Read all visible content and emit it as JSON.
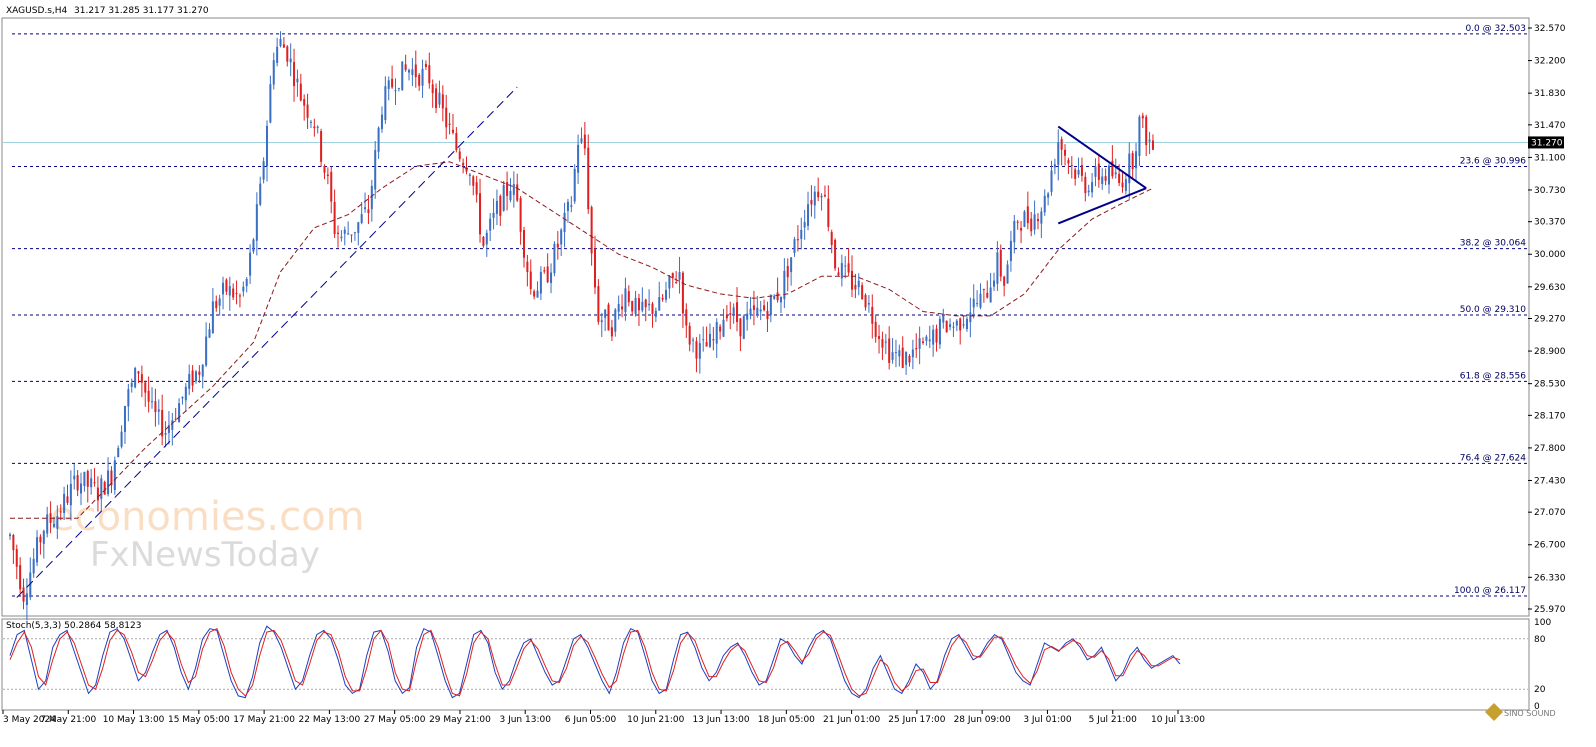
{
  "header": {
    "symbol": "XAGUSD.s,H4",
    "ohlc": "31.217 31.285 31.177 31.270"
  },
  "watermark": {
    "line1": "economies.com",
    "line2": "FxNewsToday"
  },
  "corner_logo": "SINO SOUND",
  "colors": {
    "bull": "#3a6fc4",
    "bear": "#e02020",
    "fib_line": "#000080",
    "ma": "#8b1a1a",
    "trendline": "#00008b",
    "current_price_line": "#9fd3df",
    "stoch_main": "#1f3fbf",
    "stoch_signal": "#e02020"
  },
  "chart_data": [
    {
      "type": "candlestick",
      "title": "XAGUSD.s,H4",
      "ylim": [
        25.97,
        32.57
      ],
      "y_ticks": [
        "32.570",
        "32.200",
        "31.830",
        "31.470",
        "31.100",
        "30.730",
        "30.370",
        "30.000",
        "29.630",
        "29.270",
        "28.900",
        "28.530",
        "28.170",
        "27.800",
        "27.430",
        "27.070",
        "26.700",
        "26.330",
        "25.970"
      ],
      "x_tick_labels": [
        "3 May 2024",
        "7 May 21:00",
        "10 May 13:00",
        "15 May 05:00",
        "17 May 21:00",
        "22 May 13:00",
        "27 May 05:00",
        "29 May 21:00",
        "3 Jun 13:00",
        "6 Jun 05:00",
        "10 Jun 21:00",
        "13 Jun 13:00",
        "18 Jun 05:00",
        "21 Jun 01:00",
        "25 Jun 17:00",
        "28 Jun 09:00",
        "3 Jul 01:00",
        "5 Jul 21:00",
        "10 Jul 13:00"
      ],
      "current_price": "31.270",
      "fibonacci_levels": [
        {
          "label": "0.0 @ 32.503",
          "value": 32.503
        },
        {
          "label": "23.6 @ 30.996",
          "value": 30.996
        },
        {
          "label": "38.2 @ 30.064",
          "value": 30.064
        },
        {
          "label": "50.0 @ 29.310",
          "value": 29.31
        },
        {
          "label": "61.8 @ 28.556",
          "value": 28.556
        },
        {
          "label": "76.4 @ 27.624",
          "value": 27.624
        },
        {
          "label": "100.0 @ 26.117",
          "value": 26.117
        }
      ],
      "price_path": [
        [
          0,
          26.8
        ],
        [
          4,
          26.15
        ],
        [
          10,
          26.9
        ],
        [
          14,
          27.05
        ],
        [
          20,
          27.45
        ],
        [
          26,
          27.3
        ],
        [
          30,
          27.5
        ],
        [
          34,
          28.3
        ],
        [
          38,
          28.7
        ],
        [
          42,
          28.2
        ],
        [
          46,
          28.0
        ],
        [
          50,
          28.3
        ],
        [
          54,
          28.6
        ],
        [
          56,
          28.7
        ],
        [
          60,
          29.4
        ],
        [
          64,
          29.6
        ],
        [
          68,
          29.5
        ],
        [
          70,
          29.7
        ],
        [
          74,
          30.7
        ],
        [
          78,
          32.3
        ],
        [
          80,
          32.4
        ],
        [
          82,
          32.3
        ],
        [
          86,
          31.8
        ],
        [
          90,
          31.5
        ],
        [
          94,
          30.8
        ],
        [
          96,
          30.3
        ],
        [
          98,
          30.2
        ],
        [
          102,
          30.3
        ],
        [
          106,
          30.5
        ],
        [
          110,
          31.7
        ],
        [
          114,
          32.0
        ],
        [
          118,
          32.1
        ],
        [
          124,
          32.0
        ],
        [
          128,
          31.6
        ],
        [
          132,
          31.2
        ],
        [
          136,
          31.0
        ],
        [
          140,
          30.1
        ],
        [
          144,
          30.5
        ],
        [
          148,
          30.8
        ],
        [
          150,
          30.6
        ],
        [
          154,
          29.6
        ],
        [
          158,
          29.7
        ],
        [
          162,
          30.1
        ],
        [
          166,
          30.6
        ],
        [
          168,
          31.3
        ],
        [
          170,
          31.2
        ],
        [
          172,
          30.0
        ],
        [
          174,
          29.3
        ],
        [
          178,
          29.2
        ],
        [
          182,
          29.6
        ],
        [
          186,
          29.3
        ],
        [
          190,
          29.4
        ],
        [
          192,
          29.4
        ],
        [
          196,
          29.7
        ],
        [
          198,
          29.8
        ],
        [
          200,
          29.1
        ],
        [
          204,
          28.9
        ],
        [
          208,
          29.0
        ],
        [
          212,
          29.4
        ],
        [
          216,
          29.2
        ],
        [
          220,
          29.3
        ],
        [
          224,
          29.4
        ],
        [
          228,
          29.6
        ],
        [
          232,
          30.1
        ],
        [
          236,
          30.6
        ],
        [
          240,
          30.8
        ],
        [
          242,
          30.4
        ],
        [
          244,
          29.9
        ],
        [
          248,
          29.7
        ],
        [
          252,
          29.6
        ],
        [
          256,
          29.2
        ],
        [
          260,
          28.9
        ],
        [
          264,
          28.8
        ],
        [
          268,
          28.9
        ],
        [
          272,
          29.0
        ],
        [
          276,
          29.2
        ],
        [
          280,
          29.2
        ],
        [
          284,
          29.4
        ],
        [
          288,
          29.5
        ],
        [
          292,
          29.9
        ],
        [
          294,
          29.7
        ],
        [
          296,
          30.1
        ],
        [
          298,
          30.4
        ],
        [
          302,
          30.4
        ],
        [
          306,
          30.6
        ],
        [
          310,
          31.3
        ],
        [
          314,
          31.0
        ],
        [
          318,
          30.8
        ],
        [
          322,
          30.9
        ],
        [
          326,
          30.9
        ],
        [
          328,
          30.8
        ],
        [
          332,
          31.1
        ],
        [
          334,
          31.5
        ],
        [
          338,
          31.2
        ]
      ],
      "moving_average_path": [
        [
          0,
          27.0
        ],
        [
          20,
          27.0
        ],
        [
          40,
          27.8
        ],
        [
          60,
          28.5
        ],
        [
          72,
          29.0
        ],
        [
          80,
          29.8
        ],
        [
          90,
          30.3
        ],
        [
          100,
          30.45
        ],
        [
          110,
          30.75
        ],
        [
          120,
          31.0
        ],
        [
          130,
          31.05
        ],
        [
          140,
          30.9
        ],
        [
          150,
          30.75
        ],
        [
          160,
          30.5
        ],
        [
          170,
          30.25
        ],
        [
          180,
          30.0
        ],
        [
          190,
          29.85
        ],
        [
          200,
          29.65
        ],
        [
          210,
          29.55
        ],
        [
          220,
          29.5
        ],
        [
          230,
          29.55
        ],
        [
          240,
          29.75
        ],
        [
          250,
          29.75
        ],
        [
          260,
          29.6
        ],
        [
          270,
          29.35
        ],
        [
          280,
          29.3
        ],
        [
          290,
          29.3
        ],
        [
          300,
          29.55
        ],
        [
          310,
          30.05
        ],
        [
          320,
          30.4
        ],
        [
          330,
          30.6
        ],
        [
          338,
          30.75
        ]
      ],
      "trendline_ascending": [
        [
          2,
          26.1
        ],
        [
          150,
          31.9
        ]
      ],
      "triangle_upper": [
        [
          310,
          31.45
        ],
        [
          336,
          30.75
        ]
      ],
      "triangle_lower": [
        [
          310,
          30.35
        ],
        [
          336,
          30.75
        ]
      ]
    },
    {
      "type": "line",
      "title": "Stoch(5,3,3) 50.2864 58.8123",
      "ylim": [
        0,
        100
      ],
      "y_ticks": [
        "100",
        "80",
        "20",
        "0"
      ],
      "levels": [
        80,
        20
      ],
      "series": [
        {
          "name": "main",
          "values": [
            60,
            85,
            90,
            55,
            20,
            30,
            70,
            85,
            90,
            65,
            40,
            15,
            25,
            60,
            88,
            92,
            80,
            55,
            30,
            40,
            65,
            85,
            90,
            70,
            40,
            20,
            45,
            80,
            92,
            90,
            60,
            30,
            12,
            10,
            35,
            75,
            95,
            88,
            70,
            45,
            20,
            30,
            60,
            85,
            90,
            80,
            55,
            25,
            15,
            20,
            60,
            88,
            90,
            65,
            30,
            15,
            22,
            70,
            92,
            88,
            60,
            30,
            10,
            15,
            50,
            85,
            90,
            75,
            40,
            20,
            30,
            55,
            75,
            80,
            60,
            40,
            25,
            30,
            55,
            80,
            85,
            70,
            50,
            30,
            15,
            40,
            75,
            92,
            88,
            60,
            30,
            15,
            20,
            55,
            85,
            88,
            70,
            45,
            30,
            40,
            60,
            70,
            75,
            60,
            40,
            25,
            30,
            55,
            80,
            75,
            60,
            50,
            70,
            85,
            90,
            80,
            55,
            30,
            15,
            10,
            20,
            45,
            60,
            40,
            20,
            15,
            30,
            50,
            40,
            20,
            30,
            60,
            80,
            85,
            70,
            55,
            60,
            75,
            85,
            80,
            60,
            40,
            30,
            25,
            50,
            75,
            70,
            65,
            75,
            80,
            70,
            55,
            60,
            70,
            50,
            30,
            40,
            60,
            70,
            55,
            45,
            50,
            55,
            60,
            50
          ]
        },
        {
          "name": "signal",
          "values": [
            55,
            75,
            88,
            70,
            35,
            25,
            55,
            80,
            88,
            75,
            50,
            25,
            20,
            45,
            78,
            90,
            85,
            65,
            40,
            35,
            55,
            78,
            88,
            78,
            50,
            28,
            35,
            68,
            88,
            92,
            72,
            40,
            20,
            12,
            25,
            60,
            88,
            90,
            78,
            55,
            30,
            25,
            50,
            78,
            88,
            85,
            65,
            35,
            18,
            18,
            45,
            80,
            90,
            75,
            40,
            20,
            18,
            55,
            85,
            90,
            70,
            40,
            15,
            12,
            38,
            75,
            88,
            80,
            50,
            25,
            25,
            45,
            68,
            78,
            68,
            48,
            30,
            28,
            45,
            72,
            83,
            76,
            58,
            38,
            22,
            30,
            62,
            88,
            90,
            70,
            40,
            20,
            18,
            42,
            75,
            87,
            78,
            55,
            35,
            35,
            52,
            66,
            73,
            66,
            48,
            30,
            28,
            45,
            72,
            77,
            66,
            53,
            62,
            80,
            88,
            84,
            63,
            40,
            20,
            12,
            15,
            35,
            55,
            48,
            28,
            18,
            25,
            42,
            44,
            28,
            28,
            50,
            72,
            83,
            76,
            60,
            58,
            70,
            82,
            82,
            66,
            48,
            35,
            27,
            42,
            67,
            71,
            66,
            72,
            78,
            74,
            60,
            58,
            66,
            56,
            36,
            36,
            53,
            66,
            60,
            48,
            48,
            53,
            58,
            55
          ]
        }
      ]
    }
  ]
}
